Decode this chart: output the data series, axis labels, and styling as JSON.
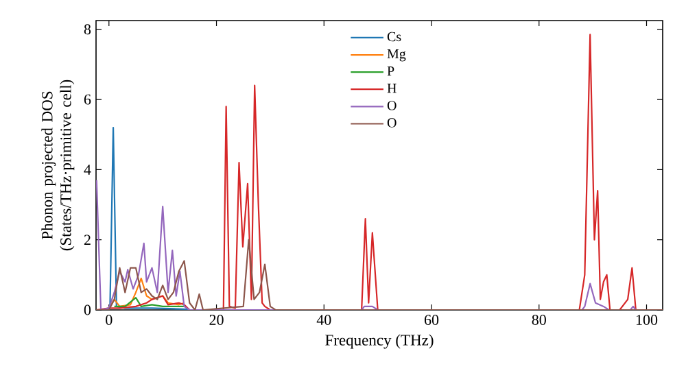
{
  "chart_data": {
    "type": "line",
    "xlabel": "Frequency (THz)",
    "ylabel": "Phonon projected DOS (States/THz·primitive cell)",
    "xlim": [
      -2.4,
      103
    ],
    "ylim": [
      0,
      8.25
    ],
    "xticks": [
      0,
      20,
      40,
      60,
      80,
      100
    ],
    "yticks": [
      0,
      2,
      4,
      6,
      8
    ],
    "legend": "top",
    "grid": false,
    "series": [
      {
        "name": "Cs",
        "color": "#1f77b4",
        "x": [
          -0.5,
          0.2,
          0.8,
          1.4,
          3,
          8,
          15
        ],
        "values": [
          0,
          0.1,
          5.2,
          0.1,
          0.05,
          0.05,
          0.02
        ]
      },
      {
        "name": "Mg",
        "color": "#ff7f0e",
        "x": [
          0,
          1,
          2,
          4,
          5,
          6,
          7,
          8,
          10,
          11,
          13,
          14
        ],
        "values": [
          0.05,
          0.3,
          0.1,
          0.15,
          0.5,
          0.9,
          0.4,
          0.3,
          0.4,
          0.2,
          0.15,
          0.2
        ]
      },
      {
        "name": "P",
        "color": "#2ca02c",
        "x": [
          1,
          3,
          5,
          6,
          8,
          10,
          14
        ],
        "values": [
          0.1,
          0.1,
          0.35,
          0.1,
          0.15,
          0.1,
          0.1
        ]
      },
      {
        "name": "H",
        "color": "#d62728",
        "x": [
          -2.4,
          0,
          2,
          5,
          7,
          8,
          10,
          11,
          13,
          14,
          15,
          21.3,
          21.8,
          22.4,
          23.5,
          24.2,
          24.9,
          25.8,
          26.5,
          27.1,
          27.8,
          28.5,
          29,
          30,
          47,
          47.7,
          48.3,
          49,
          50,
          87.5,
          88.5,
          89.5,
          90.3,
          90.9,
          91.4,
          92,
          92.6,
          93.2,
          95,
          96.5,
          97.3,
          98,
          103
        ],
        "values": [
          0,
          0.05,
          0.05,
          0.1,
          0.2,
          0.3,
          0.4,
          0.15,
          0.2,
          0.15,
          0,
          0,
          5.8,
          0.1,
          0.05,
          4.2,
          1.8,
          3.6,
          0.3,
          6.4,
          3.0,
          0.2,
          0.1,
          0,
          0,
          2.6,
          0.2,
          2.2,
          0,
          0,
          1.0,
          7.85,
          2.0,
          3.4,
          0.3,
          0.8,
          1.0,
          0,
          0,
          0.3,
          1.2,
          0,
          0
        ]
      },
      {
        "name": "O",
        "color": "#9467bd",
        "x": [
          -2.3,
          -1.5,
          0,
          1,
          2,
          3,
          3.5,
          4.5,
          5.5,
          6.5,
          7,
          8,
          9,
          10,
          11,
          11.8,
          12.5,
          13.2,
          14,
          15,
          47,
          47.5,
          49,
          50,
          88,
          88.5,
          89.5,
          90.5,
          92,
          93,
          97,
          97.5,
          98,
          103
        ],
        "values": [
          3.7,
          0,
          0.05,
          0.5,
          1.1,
          0.8,
          1.15,
          0.6,
          1.0,
          1.9,
          0.8,
          1.2,
          0.5,
          2.95,
          0.5,
          1.7,
          0.4,
          1.1,
          0.1,
          0,
          0,
          0.1,
          0.1,
          0,
          0,
          0.1,
          0.75,
          0.2,
          0.1,
          0,
          0,
          0.1,
          0,
          0
        ]
      },
      {
        "name": "O",
        "color": "#8c564b",
        "x": [
          -2.4,
          0,
          1,
          2,
          3,
          4,
          5,
          6,
          7,
          8,
          9,
          10,
          11,
          12,
          13,
          14,
          15,
          16,
          16.8,
          17.5,
          25,
          26,
          27,
          28,
          29,
          30,
          31,
          103
        ],
        "values": [
          0,
          0,
          0.3,
          1.2,
          0.5,
          1.2,
          1.2,
          0.5,
          0.6,
          0.4,
          0.3,
          0.7,
          0.3,
          0.5,
          1.1,
          1.4,
          0.2,
          0,
          0.45,
          0,
          0.1,
          2.0,
          0.3,
          0.5,
          1.3,
          0.1,
          0,
          0
        ]
      }
    ]
  }
}
